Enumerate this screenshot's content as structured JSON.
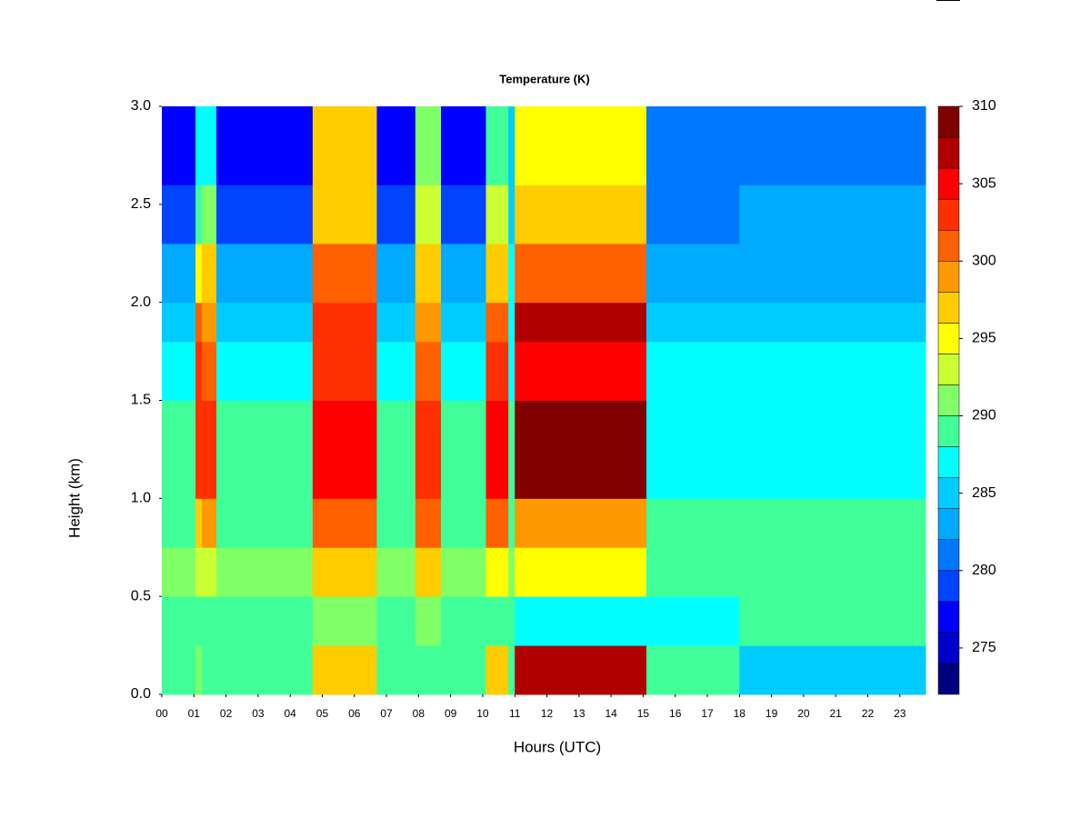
{
  "chart_data": {
    "type": "contour",
    "title": "Temperature (K)",
    "x_label": "Hours (UTC)",
    "y_label": "Height (km)",
    "x_bins": [
      0,
      1.05,
      1.25,
      1.7,
      4.7,
      6.7,
      7.9,
      8.7,
      10.1,
      10.8,
      11.0,
      15.1,
      18,
      23.8
    ],
    "y_bins": [
      0,
      0.25,
      0.5,
      0.75,
      1.0,
      1.5,
      1.8,
      2.0,
      2.3,
      2.6,
      3.0
    ],
    "z": [
      [
        289,
        290,
        289,
        289,
        297,
        289,
        288,
        289,
        296,
        289,
        306,
        288,
        285
      ],
      [
        288,
        289,
        289,
        288,
        290,
        288,
        290,
        288,
        289,
        288,
        286,
        287,
        288
      ],
      [
        290,
        293,
        293,
        290,
        297,
        290,
        297,
        290,
        294,
        290,
        294,
        289,
        289
      ],
      [
        289,
        297,
        299,
        289,
        301,
        289,
        300,
        289,
        301,
        289,
        298,
        288,
        288
      ],
      [
        288,
        303,
        303,
        288,
        305,
        288,
        302,
        288,
        305,
        288,
        308,
        287,
        287
      ],
      [
        286,
        303,
        300,
        286,
        303,
        286,
        300,
        286,
        302,
        287,
        305,
        286,
        286
      ],
      [
        285,
        301,
        298,
        285,
        302,
        285,
        298,
        285,
        301,
        287,
        306,
        285,
        285
      ],
      [
        282,
        294,
        296,
        282,
        300,
        282,
        296,
        282,
        297,
        286,
        301,
        283,
        283
      ],
      [
        279,
        289,
        290,
        279,
        297,
        279,
        293,
        279,
        293,
        285,
        297,
        281,
        282
      ],
      [
        277,
        287,
        287,
        277,
        296,
        277,
        290,
        277,
        289,
        284,
        295,
        280,
        281
      ]
    ],
    "levels": [
      272,
      274,
      276,
      278,
      280,
      282,
      284,
      286,
      288,
      290,
      292,
      294,
      296,
      298,
      300,
      302,
      304,
      306,
      308,
      310
    ],
    "colors": [
      "#000080",
      "#0000cc",
      "#0000ff",
      "#0044ff",
      "#0077ff",
      "#00aaff",
      "#00ccff",
      "#00ffff",
      "#40ff99",
      "#80ff66",
      "#ccff33",
      "#ffff00",
      "#ffcc00",
      "#ff9900",
      "#ff6000",
      "#ff3000",
      "#ff0000",
      "#b00000",
      "#800000"
    ],
    "xlim": [
      0,
      23.8
    ],
    "ylim": [
      0,
      3.0
    ],
    "clim": [
      272,
      310
    ],
    "xticks": [
      {
        "value": 0,
        "label": "00"
      },
      {
        "value": 1,
        "label": "01"
      },
      {
        "value": 2,
        "label": "02"
      },
      {
        "value": 3,
        "label": "03"
      },
      {
        "value": 4,
        "label": "04"
      },
      {
        "value": 5,
        "label": "05"
      },
      {
        "value": 6,
        "label": "06"
      },
      {
        "value": 7,
        "label": "07"
      },
      {
        "value": 8,
        "label": "08"
      },
      {
        "value": 9,
        "label": "09"
      },
      10,
      11,
      12,
      13,
      14,
      15,
      16,
      17,
      18,
      19,
      20,
      21,
      22,
      23
    ],
    "yticks": [
      {
        "value": 0,
        "label": "0.0"
      },
      0.5,
      {
        "value": 1,
        "label": "1.0"
      },
      1.5,
      {
        "value": 2,
        "label": "2.0"
      },
      2.5,
      {
        "value": 3,
        "label": "3.0"
      }
    ],
    "cticks": [
      275,
      280,
      285,
      290,
      295,
      300,
      305,
      310
    ]
  }
}
